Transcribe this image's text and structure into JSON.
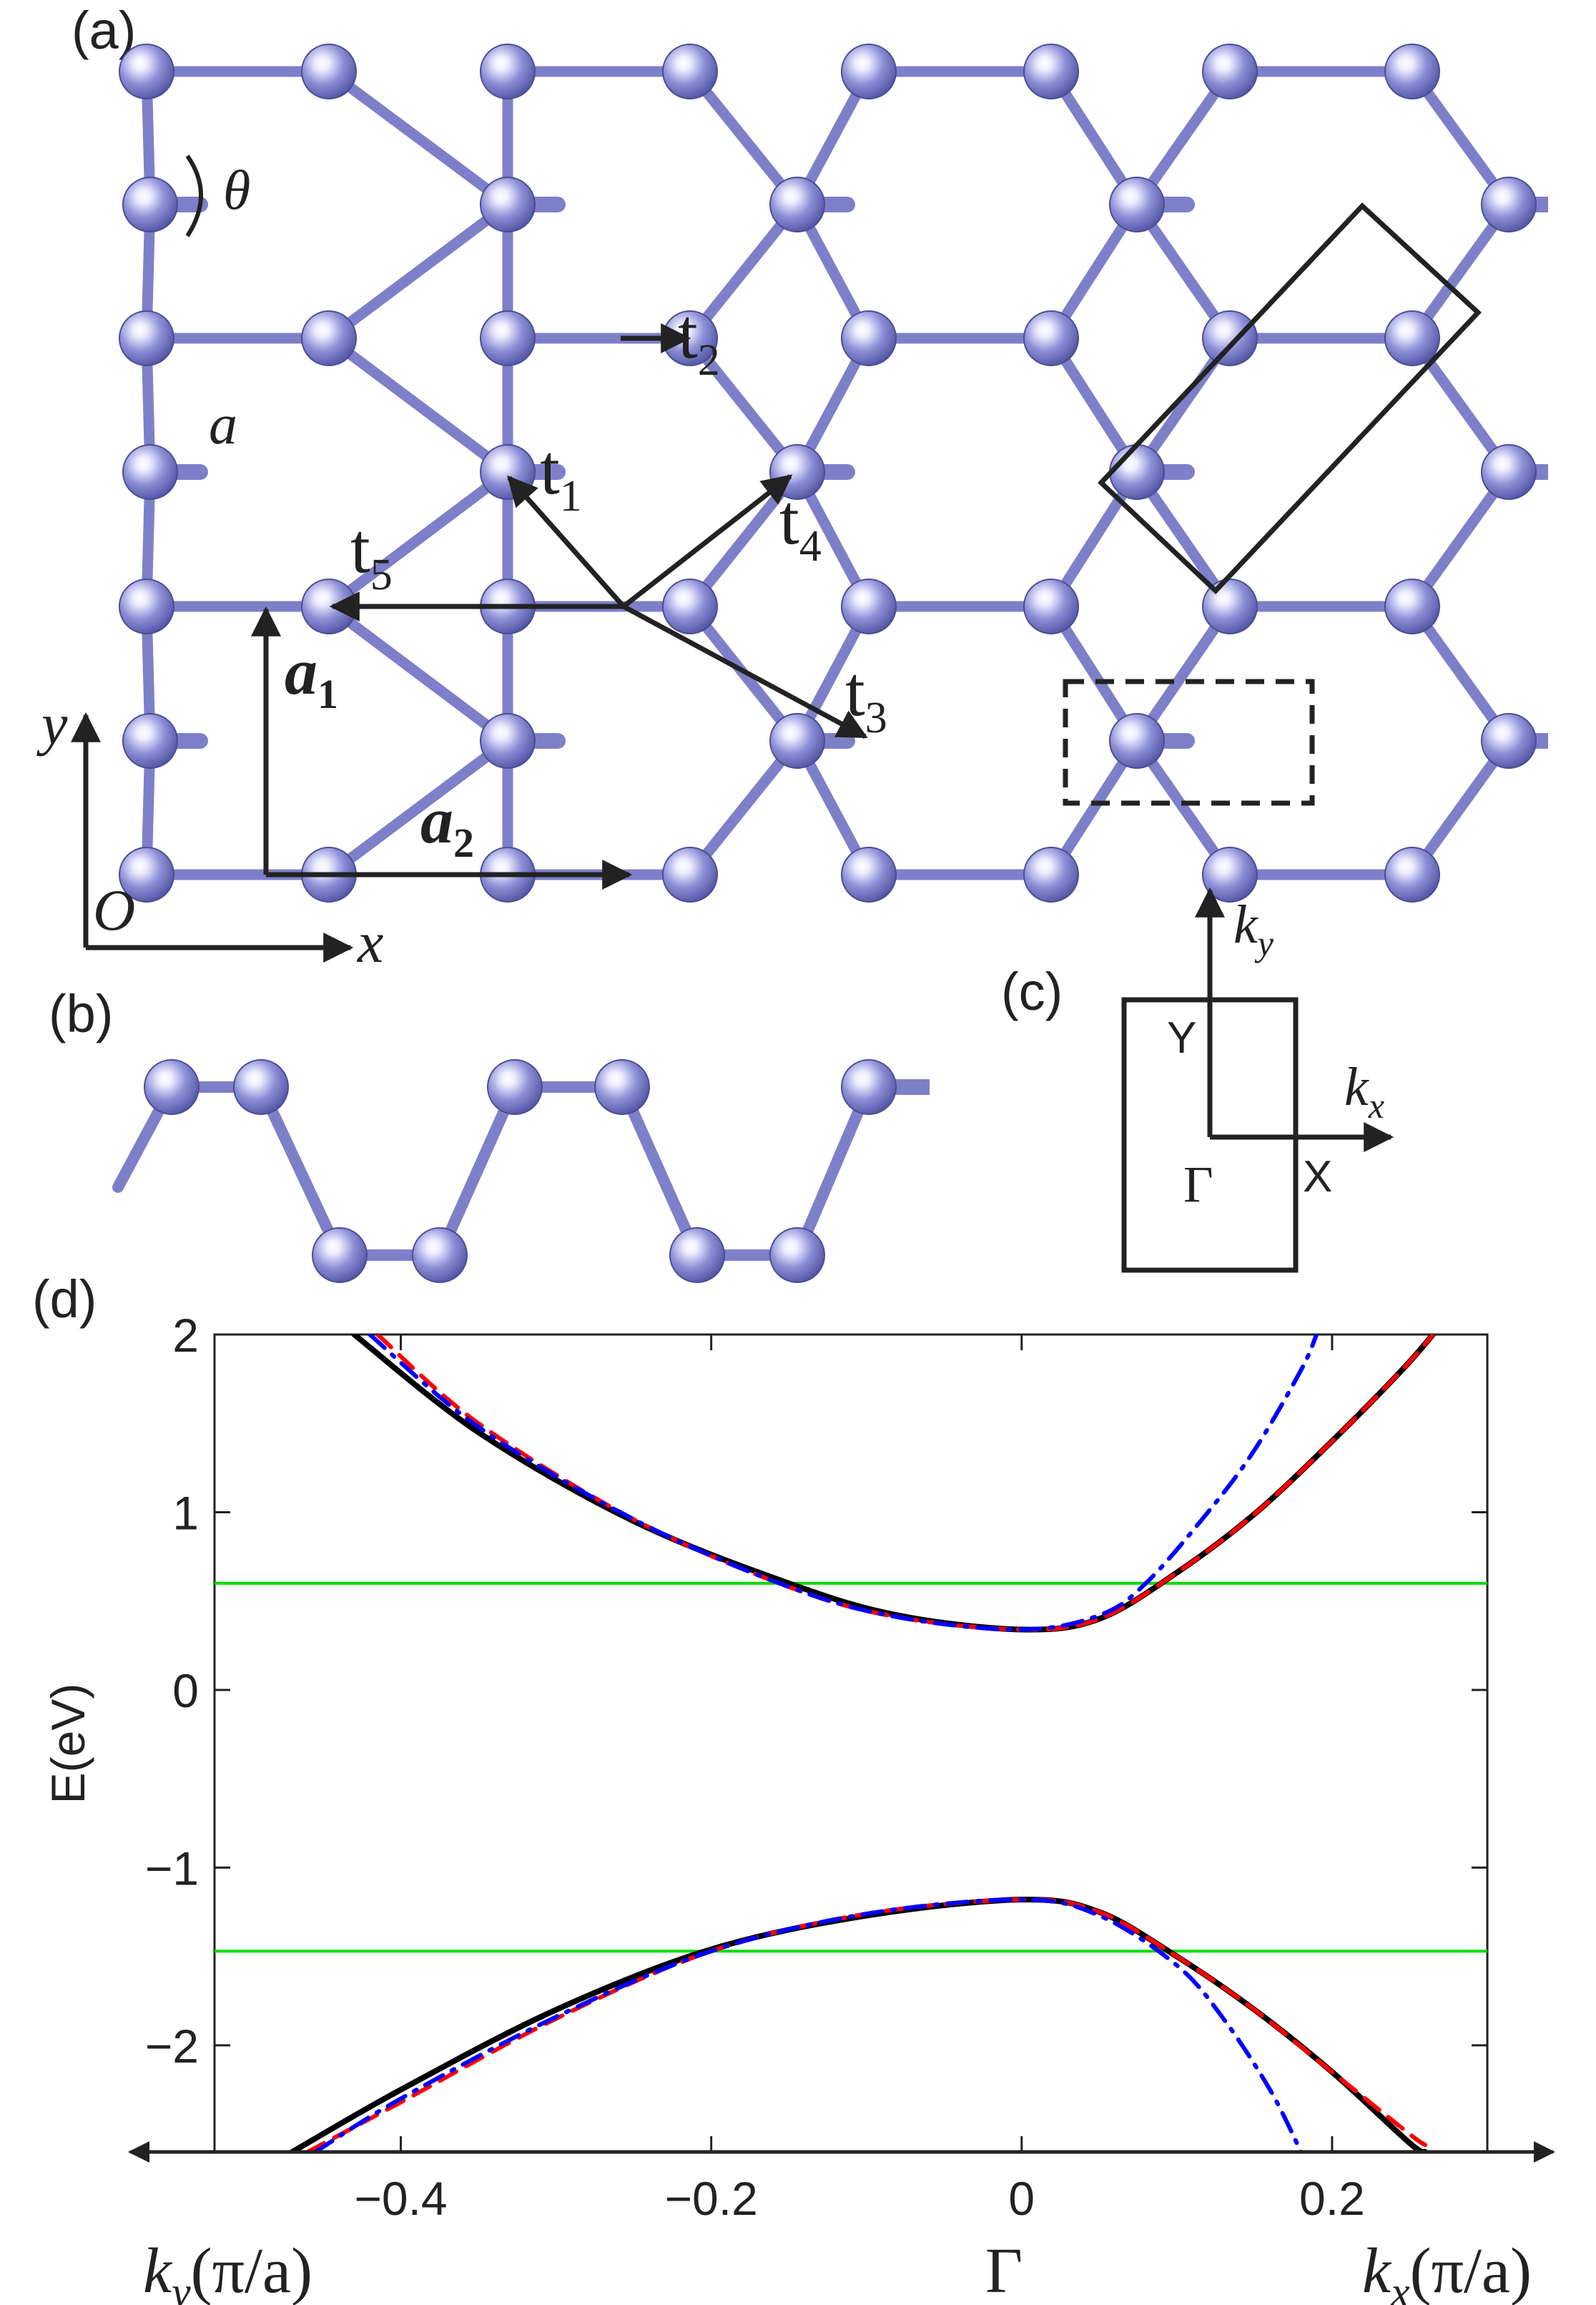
{
  "colors": {
    "atom": "#8c8fd6",
    "atom_stroke": "#4a4d96",
    "bond": "#7d80c9",
    "ink": "#222222",
    "band_black": "#000000",
    "band_red": "#ff0000",
    "band_blue": "#0000ff",
    "green": "#00dd00"
  },
  "panel_a": {
    "label": "(a)",
    "theta": "θ",
    "lattice_const": "a",
    "t1_base": "t",
    "t1_sub": "1",
    "t2_base": "t",
    "t2_sub": "2",
    "t3_base": "t",
    "t3_sub": "3",
    "t4_base": "t",
    "t4_sub": "4",
    "t5_base": "t",
    "t5_sub": "5",
    "a1_base": "a",
    "a1_sub": "1",
    "a2_base": "a",
    "a2_sub": "2",
    "axis_y": "y",
    "axis_x": "x",
    "origin": "O"
  },
  "panel_b": {
    "label": "(b)"
  },
  "panel_c": {
    "label": "(c)",
    "ky_base": "k",
    "ky_sub": "y",
    "kx_base": "k",
    "kx_sub": "x",
    "Y": "Y",
    "X": "X",
    "Gamma": "Γ"
  },
  "panel_d": {
    "label": "(d)",
    "xlabel_left": "k",
    "xlabel_left_sub": "y",
    "xlabel_left_unit": "(π/a)",
    "xlabel_mid": "Γ",
    "xlabel_right": "k",
    "xlabel_right_sub": "x",
    "xlabel_right_unit": "(π/a)"
  },
  "chart_data": {
    "type": "line",
    "ylabel": "E(eV)",
    "xlim": [
      -0.52,
      0.3
    ],
    "ylim": [
      -2.6,
      2
    ],
    "xticks": [
      -0.4,
      -0.2,
      0,
      0.2
    ],
    "xtick_labels": [
      "−0.4",
      "−0.2",
      "0",
      "0.2"
    ],
    "yticks": [
      -2,
      -1,
      0,
      1,
      2
    ],
    "ytick_labels": [
      "−2",
      "−1",
      "0",
      "1",
      "2"
    ],
    "hlines": [
      0.6,
      -1.47
    ],
    "series": [
      {
        "style": "solid",
        "color": "#000000",
        "points": [
          [
            -0.43,
            2.0
          ],
          [
            -0.35,
            1.45
          ],
          [
            -0.25,
            0.95
          ],
          [
            -0.15,
            0.6
          ],
          [
            -0.08,
            0.42
          ],
          [
            0,
            0.34
          ],
          [
            0.05,
            0.4
          ],
          [
            0.1,
            0.66
          ],
          [
            0.15,
            0.99
          ],
          [
            0.2,
            1.4
          ],
          [
            0.245,
            1.8
          ],
          [
            0.265,
            2.0
          ]
        ]
      },
      {
        "style": "dashed",
        "color": "#ff0000",
        "points": [
          [
            -0.415,
            2.0
          ],
          [
            -0.35,
            1.5
          ],
          [
            -0.25,
            0.96
          ],
          [
            -0.15,
            0.58
          ],
          [
            -0.08,
            0.41
          ],
          [
            0,
            0.34
          ],
          [
            0.05,
            0.4
          ],
          [
            0.1,
            0.66
          ],
          [
            0.15,
            0.99
          ],
          [
            0.2,
            1.4
          ],
          [
            0.245,
            1.8
          ],
          [
            0.265,
            2.0
          ]
        ]
      },
      {
        "style": "dashdot",
        "color": "#0000ff",
        "points": [
          [
            -0.42,
            2.0
          ],
          [
            -0.35,
            1.48
          ],
          [
            -0.25,
            0.96
          ],
          [
            -0.15,
            0.58
          ],
          [
            -0.08,
            0.41
          ],
          [
            0,
            0.34
          ],
          [
            0.05,
            0.42
          ],
          [
            0.08,
            0.6
          ],
          [
            0.12,
            1.0
          ],
          [
            0.15,
            1.35
          ],
          [
            0.18,
            1.8
          ],
          [
            0.19,
            2.0
          ]
        ]
      },
      {
        "style": "solid",
        "color": "#000000",
        "points": [
          [
            -0.47,
            -2.6
          ],
          [
            -0.4,
            -2.25
          ],
          [
            -0.3,
            -1.8
          ],
          [
            -0.2,
            -1.46
          ],
          [
            -0.1,
            -1.27
          ],
          [
            0,
            -1.18
          ],
          [
            0.05,
            -1.25
          ],
          [
            0.1,
            -1.5
          ],
          [
            0.15,
            -1.8
          ],
          [
            0.2,
            -2.15
          ],
          [
            0.25,
            -2.55
          ],
          [
            0.26,
            -2.6
          ]
        ]
      },
      {
        "style": "dashed",
        "color": "#ff0000",
        "points": [
          [
            -0.46,
            -2.6
          ],
          [
            -0.4,
            -2.32
          ],
          [
            -0.3,
            -1.85
          ],
          [
            -0.2,
            -1.47
          ],
          [
            -0.1,
            -1.26
          ],
          [
            0,
            -1.18
          ],
          [
            0.05,
            -1.25
          ],
          [
            0.1,
            -1.5
          ],
          [
            0.15,
            -1.8
          ],
          [
            0.2,
            -2.15
          ],
          [
            0.25,
            -2.5
          ],
          [
            0.26,
            -2.56
          ]
        ]
      },
      {
        "style": "dashdot",
        "color": "#0000ff",
        "points": [
          [
            -0.455,
            -2.6
          ],
          [
            -0.4,
            -2.3
          ],
          [
            -0.3,
            -1.84
          ],
          [
            -0.2,
            -1.47
          ],
          [
            -0.1,
            -1.26
          ],
          [
            0,
            -1.18
          ],
          [
            0.05,
            -1.27
          ],
          [
            0.1,
            -1.55
          ],
          [
            0.13,
            -1.85
          ],
          [
            0.16,
            -2.25
          ],
          [
            0.18,
            -2.6
          ]
        ]
      }
    ]
  }
}
